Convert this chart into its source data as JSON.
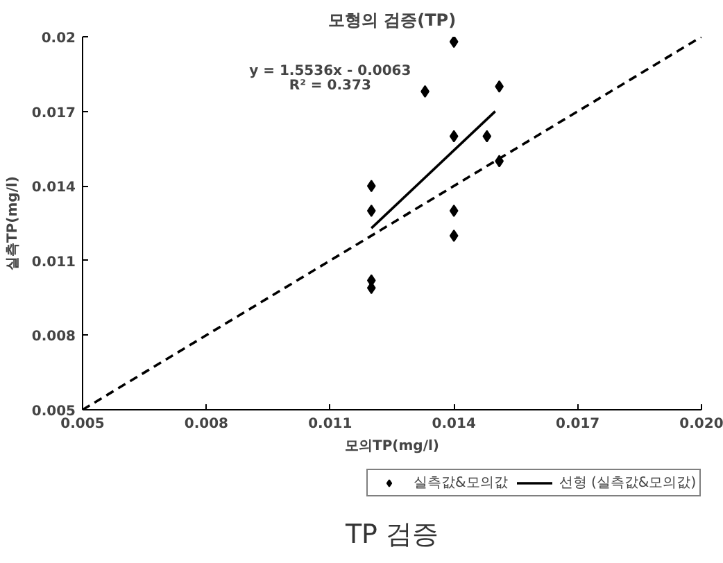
{
  "chart_data": {
    "type": "scatter",
    "title": "모형의 검증(TP)",
    "xlabel": "모의TP(mg/l)",
    "ylabel": "실측TP(mg/l)",
    "xlim": [
      0.005,
      0.02
    ],
    "ylim": [
      0.005,
      0.02
    ],
    "xticks": [
      0.005,
      0.008,
      0.011,
      0.014,
      0.017,
      {
        "value": 0.02,
        "label": "0.020"
      }
    ],
    "yticks": [
      0.005,
      0.008,
      0.011,
      0.014,
      0.017,
      0.02
    ],
    "grid": false,
    "legend": "bottom",
    "x": [
      0.012,
      0.012,
      0.012,
      0.012,
      0.0133,
      0.014,
      0.014,
      0.014,
      0.014,
      0.0148,
      0.0151,
      0.0151
    ],
    "series": [
      {
        "name": "실측값&모의값",
        "color": "#000000",
        "marker": "diamond",
        "values": [
          0.014,
          0.013,
          0.0102,
          0.0099,
          0.0178,
          0.0198,
          0.016,
          0.013,
          0.012,
          0.016,
          0.018,
          0.015
        ]
      },
      {
        "name": "선형 (실측값&모의값)",
        "type": "line",
        "color": "#000000",
        "x": [
          0.012,
          0.015
        ],
        "values": [
          0.0123,
          0.017
        ],
        "line_style": "solid"
      },
      {
        "type": "line",
        "color": "#000000",
        "x": [
          0.005,
          0.02
        ],
        "values": [
          0.005,
          0.02
        ],
        "line_style": "dashed"
      }
    ],
    "annotations": [
      "y = 1.5536x - 0.0063",
      "R² = 0.373",
      "TP 검증"
    ]
  }
}
